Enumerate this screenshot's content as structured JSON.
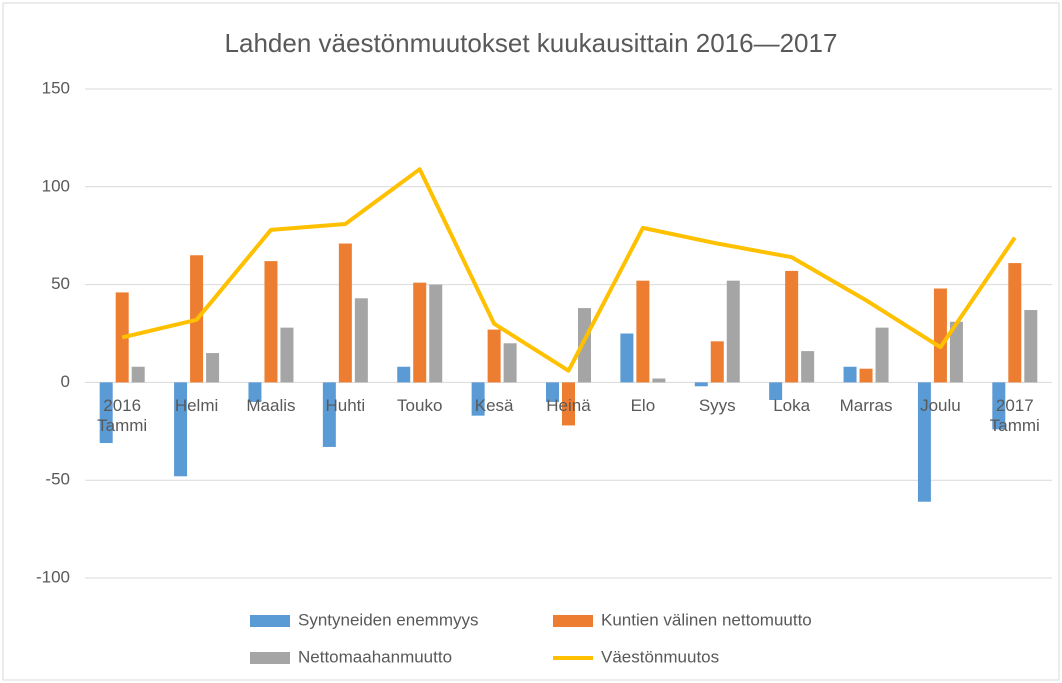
{
  "chart_data": {
    "type": "bar",
    "title": "Lahden väestönmuutokset kuukausittain 2016—2017",
    "categories": [
      "2016 Tammi",
      "Helmi",
      "Maalis",
      "Huhti",
      "Touko",
      "Kesä",
      "Heinä",
      "Elo",
      "Syys",
      "Loka",
      "Marras",
      "Joulu",
      "2017 Tammi"
    ],
    "series": [
      {
        "name": "Syntyneiden enemmyys",
        "color": "#5b9bd5",
        "type": "bar",
        "values": [
          -31,
          -48,
          -10,
          -33,
          8,
          -17,
          -10,
          25,
          -2,
          -9,
          8,
          -61,
          -24
        ]
      },
      {
        "name": "Kuntien välinen nettomuutto",
        "color": "#ed7d31",
        "type": "bar",
        "values": [
          46,
          65,
          62,
          71,
          51,
          27,
          -22,
          52,
          21,
          57,
          7,
          48,
          61
        ]
      },
      {
        "name": "Nettomaahanmuutto",
        "color": "#a5a5a5",
        "type": "bar",
        "values": [
          8,
          15,
          28,
          43,
          50,
          20,
          38,
          2,
          52,
          16,
          28,
          31,
          37
        ]
      },
      {
        "name": "Väestönmuutos",
        "color": "#ffc000",
        "type": "line",
        "values": [
          23,
          32,
          78,
          81,
          109,
          30,
          6,
          79,
          71,
          64,
          42,
          18,
          74
        ]
      }
    ],
    "ylim": [
      -100,
      150
    ],
    "yticks": [
      -100,
      -50,
      0,
      50,
      100,
      150
    ],
    "grid": true,
    "legend": "bottom"
  }
}
